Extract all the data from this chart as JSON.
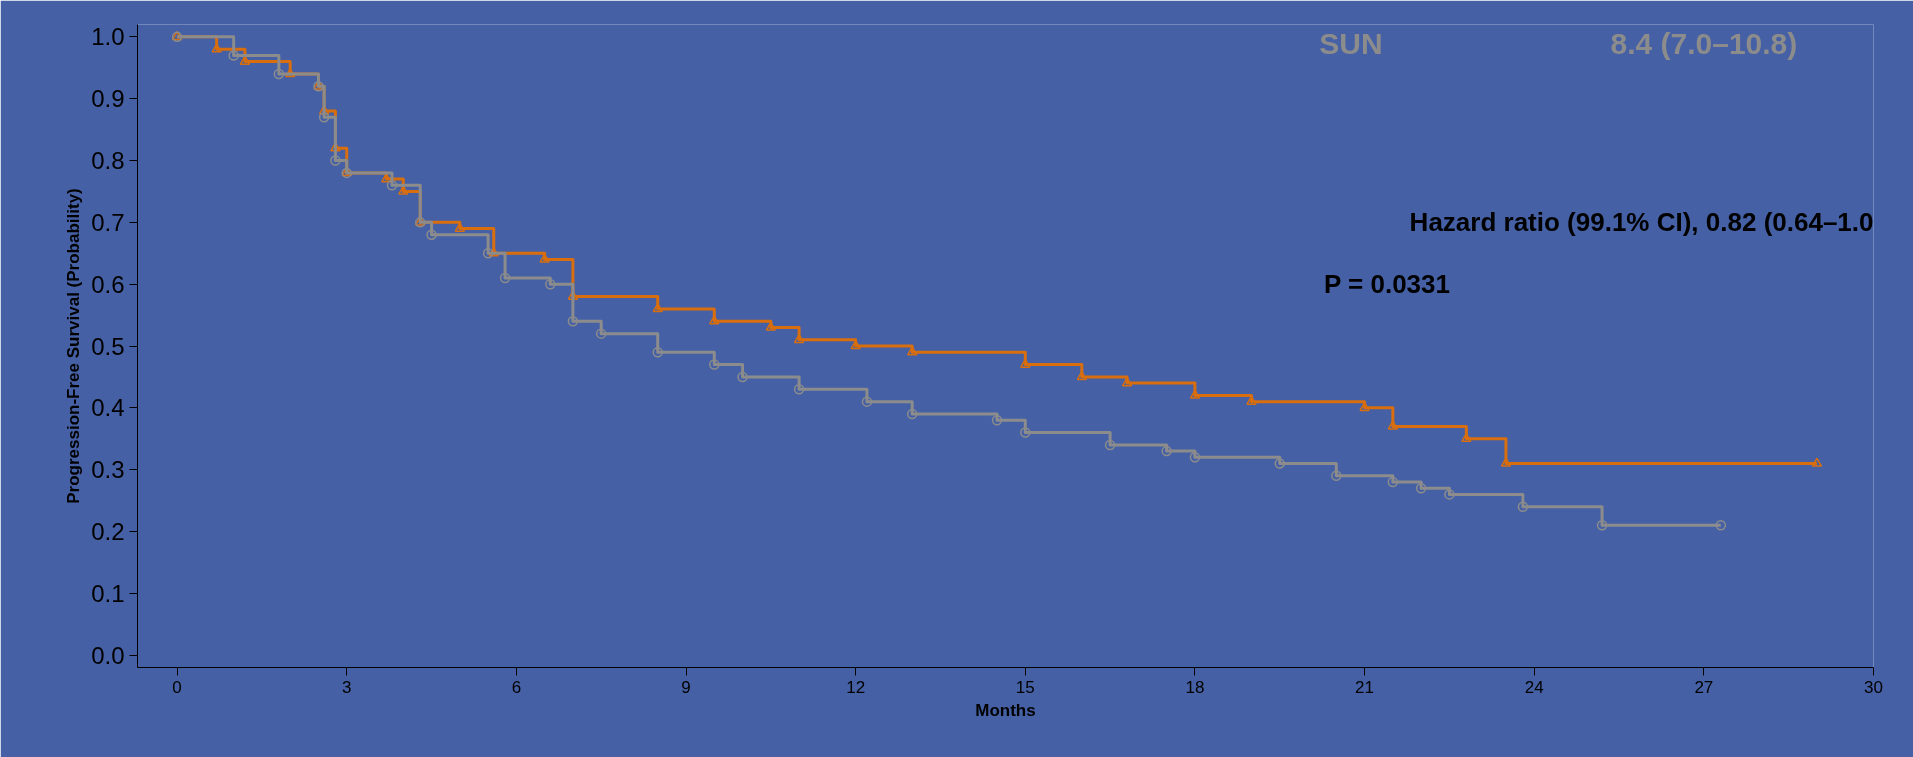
{
  "chart_data": {
    "type": "step",
    "xlabel": "Months",
    "ylabel": "Progression-Free Survival (Probability)",
    "xlim": [
      -0.7,
      30
    ],
    "ylim": [
      -0.02,
      1.02
    ],
    "xticks": [
      0,
      3,
      6,
      9,
      12,
      15,
      18,
      21,
      24,
      27,
      30
    ],
    "yticks": [
      {
        "value": 0,
        "label": "0.0"
      },
      {
        "value": 0.1,
        "label": "0.1"
      },
      {
        "value": 0.2,
        "label": "0.2"
      },
      {
        "value": 0.3,
        "label": "0.3"
      },
      {
        "value": 0.4,
        "label": "0.4"
      },
      {
        "value": 0.5,
        "label": "0.5"
      },
      {
        "value": 0.6,
        "label": "0.6"
      },
      {
        "value": 0.7,
        "label": "0.7"
      },
      {
        "value": 0.8,
        "label": "0.8"
      },
      {
        "value": 0.9,
        "label": "0.9"
      },
      {
        "value": 1,
        "label": "1.0"
      }
    ],
    "grid": false,
    "line_style": "solid",
    "series": [
      {
        "color": "#d86e0e",
        "marker": "triangle",
        "x": [
          0,
          0.7,
          1.2,
          2.0,
          2.5,
          2.6,
          2.8,
          3.0,
          3.7,
          4.0,
          4.3,
          5.0,
          5.6,
          6.5,
          7.0,
          8.5,
          9.5,
          10.5,
          11.0,
          12.0,
          13.0,
          15.0,
          16.0,
          16.8,
          18.0,
          19.0,
          21.0,
          21.5,
          22.8,
          23.5,
          29.0
        ],
        "values": [
          1.0,
          0.98,
          0.96,
          0.94,
          0.92,
          0.88,
          0.82,
          0.78,
          0.77,
          0.75,
          0.7,
          0.69,
          0.65,
          0.64,
          0.58,
          0.56,
          0.54,
          0.53,
          0.51,
          0.5,
          0.49,
          0.47,
          0.45,
          0.44,
          0.42,
          0.41,
          0.4,
          0.37,
          0.35,
          0.31,
          0.31
        ]
      },
      {
        "color": "#8c8c8c",
        "marker": "circle",
        "x": [
          0,
          1.0,
          1.8,
          2.5,
          2.6,
          2.8,
          3.0,
          3.8,
          4.3,
          4.5,
          5.5,
          5.8,
          6.6,
          7.0,
          7.5,
          8.5,
          9.5,
          10.0,
          11.0,
          12.2,
          13.0,
          14.5,
          15.0,
          16.5,
          17.5,
          18.0,
          19.5,
          20.5,
          21.5,
          22.0,
          22.5,
          23.8,
          25.2,
          27.3
        ],
        "values": [
          1.0,
          0.97,
          0.94,
          0.92,
          0.87,
          0.8,
          0.78,
          0.76,
          0.7,
          0.68,
          0.65,
          0.61,
          0.6,
          0.54,
          0.52,
          0.49,
          0.47,
          0.45,
          0.43,
          0.41,
          0.39,
          0.38,
          0.36,
          0.34,
          0.33,
          0.32,
          0.31,
          0.29,
          0.28,
          0.27,
          0.26,
          0.24,
          0.21,
          0.21
        ]
      }
    ],
    "annotations": [
      "SUN",
      "8.4 (7.0–10.8)",
      "Hazard ratio (99.1% CI), 0.82 (0.64–1.0",
      "P = 0.0331"
    ]
  }
}
